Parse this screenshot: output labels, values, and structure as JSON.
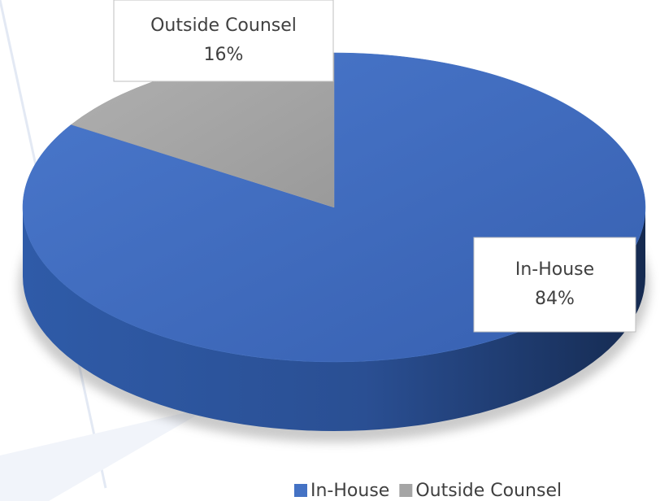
{
  "chart_data": {
    "type": "pie",
    "categories": [
      "In-House",
      "Outside Counsel"
    ],
    "values": [
      84,
      16
    ],
    "value_labels": [
      "84%",
      "16%"
    ],
    "colors": [
      "#4472c4",
      "#a5a5a5"
    ],
    "legend": "bottom"
  }
}
